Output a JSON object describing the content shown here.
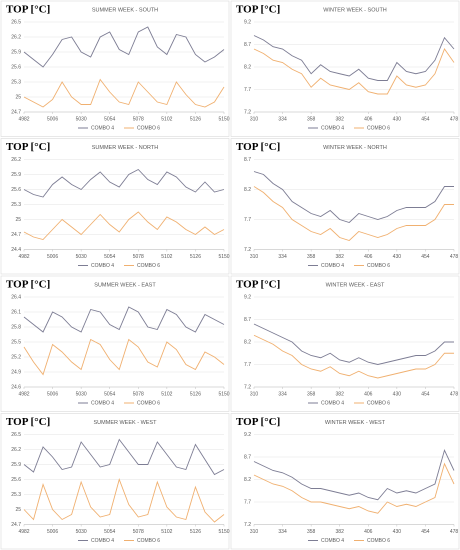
{
  "chart_data": [
    {
      "type": "line",
      "title": "SUMMER WEEK - SOUTH",
      "ylabel": "TOP [°C]",
      "x": [
        4982,
        4990,
        4998,
        5006,
        5014,
        5022,
        5030,
        5038,
        5046,
        5054,
        5062,
        5070,
        5078,
        5086,
        5094,
        5102,
        5110,
        5118,
        5126,
        5134,
        5142,
        5150
      ],
      "xlim": [
        4982,
        5150
      ],
      "xticks": [
        4982,
        5006,
        5030,
        5054,
        5078,
        5102,
        5126,
        5150
      ],
      "ylim": [
        24.7,
        26.5
      ],
      "yticks": [
        24.7,
        25,
        25.3,
        25.6,
        25.9,
        26.2,
        26.5
      ],
      "grid": true,
      "legend": "bottom",
      "series": [
        {
          "name": "COMBO 4",
          "color": "#7d7d94",
          "values": [
            25.9,
            25.75,
            25.6,
            25.85,
            26.15,
            26.2,
            25.9,
            25.8,
            26.2,
            26.3,
            25.95,
            25.85,
            26.3,
            26.4,
            26.0,
            25.85,
            26.25,
            26.2,
            25.85,
            25.7,
            25.8,
            25.95
          ]
        },
        {
          "name": "COMBO 6",
          "color": "#f0b070",
          "values": [
            25.0,
            24.9,
            24.8,
            24.95,
            25.3,
            25.0,
            24.85,
            24.85,
            25.35,
            25.1,
            24.9,
            24.85,
            25.3,
            25.1,
            24.9,
            24.85,
            25.3,
            25.05,
            24.85,
            24.8,
            24.9,
            25.2
          ]
        }
      ]
    },
    {
      "type": "line",
      "title": "WINTER WEEK - SOUTH",
      "ylabel": "TOP [°C]",
      "x": [
        310,
        318,
        326,
        334,
        342,
        350,
        358,
        366,
        374,
        382,
        390,
        398,
        406,
        414,
        422,
        430,
        438,
        446,
        454,
        462,
        470,
        478
      ],
      "xlim": [
        310,
        478
      ],
      "xticks": [
        310,
        334,
        358,
        382,
        406,
        430,
        454,
        478
      ],
      "ylim": [
        7.2,
        9.2
      ],
      "yticks": [
        7.2,
        7.7,
        8.2,
        8.7,
        9.2
      ],
      "grid": true,
      "legend": "bottom",
      "series": [
        {
          "name": "COMBO 4",
          "color": "#7d7d94",
          "values": [
            8.9,
            8.8,
            8.65,
            8.6,
            8.45,
            8.35,
            8.05,
            8.25,
            8.1,
            8.05,
            8.0,
            8.15,
            7.95,
            7.9,
            7.9,
            8.3,
            8.1,
            8.05,
            8.1,
            8.35,
            8.85,
            8.6
          ]
        },
        {
          "name": "COMBO 6",
          "color": "#f0b070",
          "values": [
            8.6,
            8.5,
            8.35,
            8.3,
            8.15,
            8.05,
            7.75,
            7.95,
            7.8,
            7.75,
            7.7,
            7.85,
            7.65,
            7.6,
            7.6,
            8.0,
            7.8,
            7.75,
            7.8,
            8.05,
            8.6,
            8.3
          ]
        }
      ]
    },
    {
      "type": "line",
      "title": "SUMMER WEEK - NORTH",
      "ylabel": "TOP [°C]",
      "x": [
        4982,
        4990,
        4998,
        5006,
        5014,
        5022,
        5030,
        5038,
        5046,
        5054,
        5062,
        5070,
        5078,
        5086,
        5094,
        5102,
        5110,
        5118,
        5126,
        5134,
        5142,
        5150
      ],
      "xlim": [
        4982,
        5150
      ],
      "xticks": [
        4982,
        5006,
        5030,
        5054,
        5078,
        5102,
        5126,
        5150
      ],
      "ylim": [
        24.4,
        26.2
      ],
      "yticks": [
        24.4,
        24.7,
        25,
        25.3,
        25.6,
        25.9,
        26.2
      ],
      "grid": true,
      "legend": "bottom",
      "series": [
        {
          "name": "COMBO 4",
          "color": "#7d7d94",
          "values": [
            25.6,
            25.5,
            25.45,
            25.7,
            25.85,
            25.7,
            25.6,
            25.8,
            25.95,
            25.75,
            25.65,
            25.9,
            26.0,
            25.8,
            25.7,
            25.95,
            25.85,
            25.65,
            25.55,
            25.75,
            25.55,
            25.6
          ]
        },
        {
          "name": "COMBO 6",
          "color": "#f0b070",
          "values": [
            24.75,
            24.65,
            24.6,
            24.8,
            25.0,
            24.85,
            24.7,
            24.9,
            25.1,
            24.9,
            24.75,
            25.0,
            25.15,
            24.95,
            24.8,
            25.05,
            24.95,
            24.8,
            24.7,
            24.85,
            24.7,
            24.8
          ]
        }
      ]
    },
    {
      "type": "line",
      "title": "WINTER WEEK - NORTH",
      "ylabel": "TOP [°C]",
      "x": [
        310,
        318,
        326,
        334,
        342,
        350,
        358,
        366,
        374,
        382,
        390,
        398,
        406,
        414,
        422,
        430,
        438,
        446,
        454,
        462,
        470,
        478
      ],
      "xlim": [
        310,
        478
      ],
      "xticks": [
        310,
        334,
        358,
        382,
        406,
        430,
        454,
        478
      ],
      "ylim": [
        7.2,
        8.7
      ],
      "yticks": [
        7.2,
        7.7,
        8.2,
        8.7
      ],
      "grid": true,
      "legend": "bottom",
      "series": [
        {
          "name": "COMBO 4",
          "color": "#7d7d94",
          "values": [
            8.5,
            8.45,
            8.3,
            8.2,
            8.0,
            7.9,
            7.8,
            7.75,
            7.85,
            7.7,
            7.65,
            7.8,
            7.75,
            7.7,
            7.75,
            7.85,
            7.9,
            7.9,
            7.9,
            8.0,
            8.25,
            8.25
          ]
        },
        {
          "name": "COMBO 6",
          "color": "#f0b070",
          "values": [
            8.25,
            8.15,
            8.0,
            7.9,
            7.7,
            7.6,
            7.5,
            7.45,
            7.55,
            7.4,
            7.35,
            7.5,
            7.45,
            7.4,
            7.45,
            7.55,
            7.6,
            7.6,
            7.6,
            7.7,
            7.95,
            7.95
          ]
        }
      ]
    },
    {
      "type": "line",
      "title": "SUMMER WEEK - EAST",
      "ylabel": "TOP [°C]",
      "x": [
        4982,
        4990,
        4998,
        5006,
        5014,
        5022,
        5030,
        5038,
        5046,
        5054,
        5062,
        5070,
        5078,
        5086,
        5094,
        5102,
        5110,
        5118,
        5126,
        5134,
        5142,
        5150
      ],
      "xlim": [
        4982,
        5150
      ],
      "xticks": [
        4982,
        5006,
        5030,
        5054,
        5078,
        5102,
        5126,
        5150
      ],
      "ylim": [
        24.6,
        26.4
      ],
      "yticks": [
        24.6,
        24.9,
        25.2,
        25.5,
        25.8,
        26.1,
        26.4
      ],
      "grid": true,
      "legend": "bottom",
      "series": [
        {
          "name": "COMBO 4",
          "color": "#7d7d94",
          "values": [
            26.0,
            25.85,
            25.7,
            26.1,
            26.0,
            25.8,
            25.7,
            26.15,
            26.1,
            25.85,
            25.75,
            26.2,
            26.1,
            25.8,
            25.75,
            26.15,
            26.05,
            25.8,
            25.7,
            26.05,
            25.95,
            25.85
          ]
        },
        {
          "name": "COMBO 6",
          "color": "#f0b070",
          "values": [
            25.4,
            25.1,
            24.85,
            25.45,
            25.3,
            25.1,
            24.95,
            25.55,
            25.45,
            25.15,
            24.95,
            25.55,
            25.4,
            25.1,
            25.0,
            25.5,
            25.35,
            25.05,
            24.95,
            25.3,
            25.2,
            25.05
          ]
        }
      ]
    },
    {
      "type": "line",
      "title": "WINTER WEEK - EAST",
      "ylabel": "TOP [°C]",
      "x": [
        310,
        318,
        326,
        334,
        342,
        350,
        358,
        366,
        374,
        382,
        390,
        398,
        406,
        414,
        422,
        430,
        438,
        446,
        454,
        462,
        470,
        478
      ],
      "xlim": [
        310,
        478
      ],
      "xticks": [
        310,
        334,
        358,
        382,
        406,
        430,
        454,
        478
      ],
      "ylim": [
        7.2,
        9.2
      ],
      "yticks": [
        7.2,
        7.7,
        8.2,
        8.7,
        9.2
      ],
      "grid": true,
      "legend": "bottom",
      "series": [
        {
          "name": "COMBO 4",
          "color": "#7d7d94",
          "values": [
            8.6,
            8.5,
            8.4,
            8.3,
            8.2,
            8.0,
            7.9,
            7.85,
            7.95,
            7.8,
            7.75,
            7.85,
            7.75,
            7.7,
            7.75,
            7.8,
            7.85,
            7.9,
            7.9,
            8.0,
            8.2,
            8.2
          ]
        },
        {
          "name": "COMBO 6",
          "color": "#f0b070",
          "values": [
            8.35,
            8.25,
            8.15,
            8.0,
            7.9,
            7.7,
            7.6,
            7.55,
            7.65,
            7.5,
            7.45,
            7.55,
            7.45,
            7.4,
            7.45,
            7.5,
            7.55,
            7.6,
            7.6,
            7.7,
            7.95,
            7.95
          ]
        }
      ]
    },
    {
      "type": "line",
      "title": "SUMMER WEEK - WEST",
      "ylabel": "TOP [°C]",
      "x": [
        4982,
        4990,
        4998,
        5006,
        5014,
        5022,
        5030,
        5038,
        5046,
        5054,
        5062,
        5070,
        5078,
        5086,
        5094,
        5102,
        5110,
        5118,
        5126,
        5134,
        5142,
        5150
      ],
      "xlim": [
        4982,
        5150
      ],
      "xticks": [
        4982,
        5006,
        5030,
        5054,
        5078,
        5102,
        5126,
        5150
      ],
      "ylim": [
        24.7,
        26.5
      ],
      "yticks": [
        24.7,
        25,
        25.3,
        25.6,
        25.9,
        26.2,
        26.5
      ],
      "grid": true,
      "legend": "bottom",
      "series": [
        {
          "name": "COMBO 4",
          "color": "#7d7d94",
          "values": [
            25.9,
            25.75,
            26.25,
            26.05,
            25.8,
            25.85,
            26.35,
            26.1,
            25.85,
            25.9,
            26.4,
            26.15,
            25.9,
            25.9,
            26.35,
            26.1,
            25.85,
            25.8,
            26.3,
            26.0,
            25.7,
            25.8
          ]
        },
        {
          "name": "COMBO 6",
          "color": "#f0b070",
          "values": [
            25.0,
            24.8,
            25.5,
            25.0,
            24.8,
            24.9,
            25.55,
            25.05,
            24.85,
            24.9,
            25.6,
            25.1,
            24.85,
            24.9,
            25.55,
            25.05,
            24.85,
            24.8,
            25.45,
            24.95,
            24.75,
            24.9
          ]
        }
      ]
    },
    {
      "type": "line",
      "title": "WINTER WEEK - WEST",
      "ylabel": "TOP [°C]",
      "x": [
        310,
        318,
        326,
        334,
        342,
        350,
        358,
        366,
        374,
        382,
        390,
        398,
        406,
        414,
        422,
        430,
        438,
        446,
        454,
        462,
        470,
        478
      ],
      "xlim": [
        310,
        478
      ],
      "xticks": [
        310,
        334,
        358,
        382,
        406,
        430,
        454,
        478
      ],
      "ylim": [
        7.2,
        9.2
      ],
      "yticks": [
        7.2,
        7.7,
        8.2,
        8.7,
        9.2
      ],
      "grid": true,
      "legend": "bottom",
      "series": [
        {
          "name": "COMBO 4",
          "color": "#7d7d94",
          "values": [
            8.6,
            8.5,
            8.4,
            8.35,
            8.25,
            8.1,
            8.0,
            8.0,
            7.95,
            7.9,
            7.85,
            7.9,
            7.8,
            7.75,
            8.0,
            7.9,
            7.95,
            7.9,
            8.0,
            8.1,
            8.85,
            8.4
          ]
        },
        {
          "name": "COMBO 6",
          "color": "#f0b070",
          "values": [
            8.3,
            8.2,
            8.1,
            8.05,
            7.95,
            7.8,
            7.7,
            7.7,
            7.65,
            7.6,
            7.55,
            7.6,
            7.5,
            7.45,
            7.7,
            7.6,
            7.65,
            7.6,
            7.7,
            7.8,
            8.55,
            8.1
          ]
        }
      ]
    }
  ]
}
